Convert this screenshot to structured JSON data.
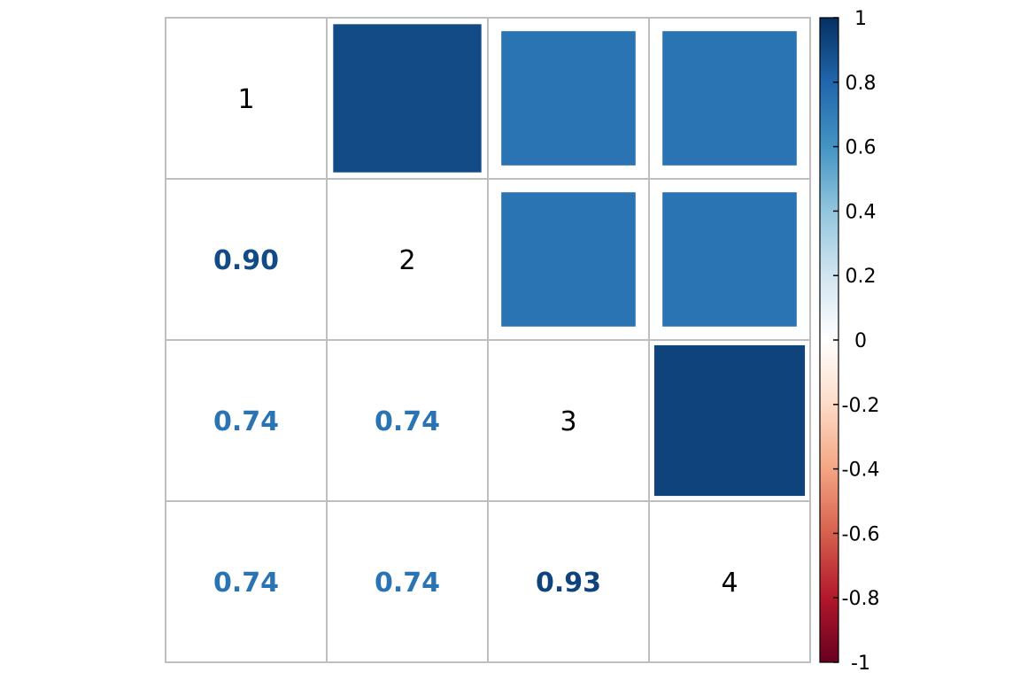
{
  "chart_data": {
    "type": "heatmap",
    "title": "",
    "variables": [
      "1",
      "2",
      "3",
      "4"
    ],
    "matrix": [
      [
        1.0,
        0.9,
        0.74,
        0.74
      ],
      [
        0.9,
        1.0,
        0.74,
        0.74
      ],
      [
        0.74,
        0.74,
        1.0,
        0.93
      ],
      [
        0.74,
        0.74,
        0.93,
        1.0
      ]
    ],
    "lower_labels": [
      {
        "row": 1,
        "col": 0,
        "text": "0.90",
        "value": 0.9
      },
      {
        "row": 2,
        "col": 0,
        "text": "0.74",
        "value": 0.74
      },
      {
        "row": 2,
        "col": 1,
        "text": "0.74",
        "value": 0.74
      },
      {
        "row": 3,
        "col": 0,
        "text": "0.74",
        "value": 0.74
      },
      {
        "row": 3,
        "col": 1,
        "text": "0.74",
        "value": 0.74
      },
      {
        "row": 3,
        "col": 2,
        "text": "0.93",
        "value": 0.93
      }
    ],
    "upper_method": "square",
    "lower_method": "number",
    "colorbar": {
      "min": -1,
      "max": 1,
      "ticks": [
        "1",
        "0.8",
        "0.6",
        "0.4",
        "0.2",
        "0",
        "-0.2",
        "-0.4",
        "-0.6",
        "-0.8",
        "-1"
      ],
      "colors": [
        "#67001F",
        "#B2182B",
        "#D6604D",
        "#F4A582",
        "#FDDBC7",
        "#FFFFFF",
        "#D1E5F0",
        "#92C5DE",
        "#4393C3",
        "#2166AC",
        "#053061"
      ]
    }
  }
}
